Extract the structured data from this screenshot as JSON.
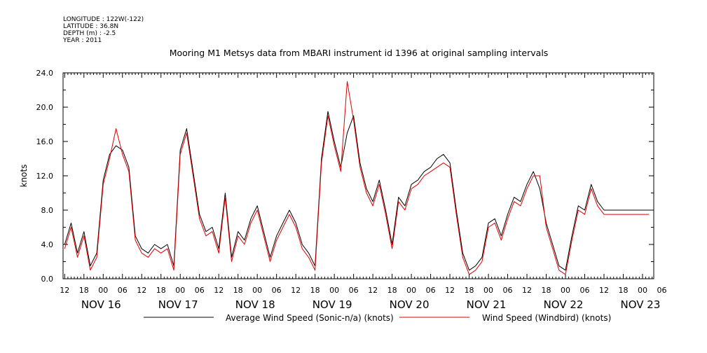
{
  "header": {
    "longitude": "LONGITUDE : 122W(-122)",
    "latitude": "LATITUDE : 36.8N",
    "depth": "DEPTH (m) : -2.5",
    "year": "YEAR : 2011",
    "title": "Mooring M1 Metsys data from MBARI instrument id 1396 at original sampling intervals"
  },
  "legend": {
    "series_black": "Average Wind Speed (Sonic-n/a) (knots)",
    "series_red": "Wind Speed (Windbird) (knots)"
  },
  "colors": {
    "series_black": "#000000",
    "series_red": "#e00000",
    "axis": "#000000"
  },
  "chart_data": {
    "type": "line",
    "ylabel": "knots",
    "xlabel": "",
    "ylim": [
      0,
      24
    ],
    "xlim_hours": [
      -12.5,
      171.5
    ],
    "ytick_labels": [
      "0.0",
      "4.0",
      "8.0",
      "12.0",
      "16.0",
      "20.0",
      "24.0"
    ],
    "x_hour_labels": [
      "12",
      "18",
      "00",
      "06",
      "12",
      "18",
      "00",
      "06",
      "12",
      "18",
      "00",
      "06",
      "12",
      "18",
      "00",
      "06",
      "12",
      "18",
      "00",
      "06",
      "12",
      "18",
      "00",
      "06",
      "12",
      "18",
      "00",
      "06",
      "12",
      "18",
      "00",
      "06"
    ],
    "x_day_labels": [
      "NOV 16",
      "NOV 17",
      "NOV 18",
      "NOV 19",
      "NOV 20",
      "NOV 21",
      "NOV 22",
      "NOV 23"
    ],
    "x_unit_note": "hours since 2011-11-16 00:00",
    "series": [
      {
        "name": "Average Wind Speed (Sonic-n/a) (knots)",
        "x": [
          -12,
          -10,
          -8,
          -6,
          -4,
          -2,
          0,
          2,
          4,
          6,
          8,
          10,
          12,
          14,
          16,
          18,
          20,
          22,
          24,
          26,
          28,
          30,
          32,
          34,
          36,
          38,
          40,
          42,
          44,
          46,
          48,
          50,
          52,
          54,
          56,
          58,
          60,
          62,
          64,
          66,
          68,
          70,
          72,
          74,
          76,
          78,
          80,
          82,
          84,
          86,
          88,
          90,
          92,
          94,
          96,
          98,
          100,
          102,
          104,
          106,
          108,
          110,
          112,
          114,
          116,
          118,
          120,
          122,
          124,
          126,
          128,
          130,
          132,
          134,
          136,
          138,
          140,
          142,
          144,
          146,
          148,
          150,
          152,
          154,
          156,
          158,
          160,
          162,
          164,
          166,
          168,
          170
        ],
        "values": [
          4.0,
          6.5,
          3.0,
          5.5,
          1.5,
          3.0,
          11.5,
          14.5,
          15.5,
          15.0,
          13.0,
          5.0,
          3.5,
          3.0,
          4.0,
          3.5,
          4.0,
          1.5,
          15.0,
          17.5,
          12.5,
          7.5,
          5.5,
          6.0,
          3.5,
          10.0,
          2.5,
          5.5,
          4.5,
          7.0,
          8.5,
          5.5,
          2.5,
          5.0,
          6.5,
          8.0,
          6.5,
          4.0,
          3.0,
          1.5,
          14.0,
          19.5,
          16.0,
          13.0,
          17.0,
          19.0,
          13.5,
          10.5,
          9.0,
          11.5,
          8.0,
          4.0,
          9.5,
          8.5,
          11.0,
          11.5,
          12.5,
          13.0,
          14.0,
          14.5,
          13.5,
          8.0,
          3.0,
          1.0,
          1.5,
          2.5,
          6.5,
          7.0,
          5.0,
          7.5,
          9.5,
          9.0,
          11.0,
          12.5,
          10.5,
          6.5,
          4.0,
          1.5,
          1.0,
          5.0,
          8.5,
          8.0,
          11.0,
          9.0,
          8.0,
          8.0,
          8.0,
          8.0,
          8.0,
          8.0,
          8.0,
          8.0
        ]
      },
      {
        "name": "Wind Speed (Windbird) (knots)",
        "x": [
          -12,
          -10,
          -8,
          -6,
          -4,
          -2,
          0,
          2,
          4,
          6,
          8,
          10,
          12,
          14,
          16,
          18,
          20,
          22,
          24,
          26,
          28,
          30,
          32,
          34,
          36,
          38,
          40,
          42,
          44,
          46,
          48,
          50,
          52,
          54,
          56,
          58,
          60,
          62,
          64,
          66,
          68,
          70,
          72,
          74,
          76,
          78,
          80,
          82,
          84,
          86,
          88,
          90,
          92,
          94,
          96,
          98,
          100,
          102,
          104,
          106,
          108,
          110,
          112,
          114,
          116,
          118,
          120,
          122,
          124,
          126,
          128,
          130,
          132,
          134,
          136,
          138,
          140,
          142,
          144,
          146,
          148,
          150,
          152,
          154,
          156,
          158,
          160,
          162,
          164,
          166,
          168,
          170
        ],
        "values": [
          3.5,
          6.0,
          2.5,
          5.0,
          1.0,
          2.5,
          11.0,
          14.0,
          17.5,
          14.5,
          12.5,
          4.5,
          3.0,
          2.5,
          3.5,
          3.0,
          3.5,
          1.0,
          14.5,
          17.0,
          12.0,
          7.0,
          5.0,
          5.5,
          3.0,
          9.5,
          2.0,
          5.0,
          4.0,
          6.5,
          8.0,
          5.0,
          2.0,
          4.5,
          6.0,
          7.5,
          6.0,
          3.5,
          2.5,
          1.0,
          13.5,
          19.0,
          15.5,
          12.5,
          23.0,
          18.5,
          13.0,
          10.0,
          8.5,
          11.0,
          7.5,
          3.5,
          9.0,
          8.0,
          10.5,
          11.0,
          12.0,
          12.5,
          13.0,
          13.5,
          13.0,
          7.5,
          2.5,
          0.5,
          1.0,
          2.0,
          6.0,
          6.5,
          4.5,
          7.0,
          9.0,
          8.5,
          10.5,
          12.0,
          12.0,
          6.0,
          3.5,
          1.0,
          0.5,
          4.5,
          8.0,
          7.5,
          10.5,
          8.5,
          7.5,
          7.5,
          7.5,
          7.5,
          7.5,
          7.5,
          7.5,
          7.5
        ]
      }
    ]
  }
}
